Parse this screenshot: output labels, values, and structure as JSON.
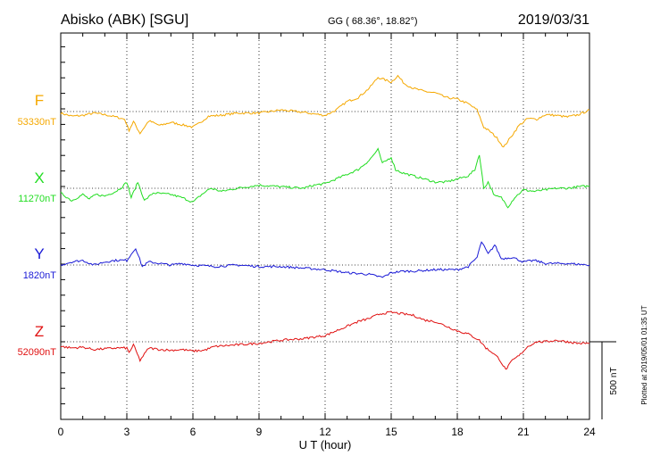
{
  "header": {
    "station": "Abisko (ABK)  [SGU]",
    "coords": "GG ( 68.36°,  18.82°)",
    "date": "2019/03/31"
  },
  "side_note": "Plotted at 2019/05/01 01:35 UT",
  "chart_data": {
    "type": "line",
    "title": "Abisko (ABK)  [SGU]",
    "xlabel": "U T (hour)",
    "ylabel": "",
    "xlim": [
      0,
      24
    ],
    "xticks": [
      0,
      3,
      6,
      9,
      12,
      15,
      18,
      21,
      24
    ],
    "grid": "dotted vertical lines every 3 hours",
    "scale_bar": {
      "label": "500 nT",
      "value_nT": 500
    },
    "series": [
      {
        "name": "F",
        "baseline_label": "53330nT",
        "color": "#f5a800",
        "baseline_offset_nT": -30,
        "x": [
          0,
          0.5,
          1,
          1.5,
          2,
          2.5,
          2.9,
          3.1,
          3.3,
          3.6,
          4,
          4.5,
          5,
          5.5,
          6,
          6.3,
          6.7,
          7.2,
          8,
          9,
          10,
          11,
          12,
          12.5,
          13,
          13.5,
          14,
          14.4,
          14.6,
          15,
          15.3,
          15.6,
          16,
          16.5,
          17,
          17.5,
          18,
          18.5,
          18.9,
          19.2,
          19.5,
          19.8,
          20.1,
          20.4,
          20.8,
          21.2,
          21.6,
          22,
          22.5,
          23,
          23.5,
          24
        ],
        "y": [
          20,
          0,
          5,
          20,
          10,
          -5,
          -20,
          -90,
          -35,
          -110,
          -30,
          -60,
          -40,
          -55,
          -70,
          -45,
          0,
          5,
          20,
          20,
          40,
          25,
          5,
          40,
          95,
          120,
          180,
          250,
          240,
          220,
          260,
          210,
          180,
          160,
          150,
          120,
          110,
          80,
          40,
          -70,
          -100,
          -140,
          -200,
          -140,
          -60,
          -15,
          -20,
          10,
          5,
          -5,
          10,
          40
        ]
      },
      {
        "name": "X",
        "baseline_label": "11270nT",
        "color": "#22dd22",
        "baseline_offset_nT": 0,
        "x": [
          0,
          0.5,
          1,
          1.3,
          1.6,
          2,
          2.5,
          2.8,
          3,
          3.2,
          3.5,
          3.8,
          4.2,
          5,
          5.5,
          6,
          6.4,
          6.8,
          7.3,
          8,
          9,
          10,
          11,
          11.5,
          12,
          12.5,
          13,
          13.5,
          14,
          14.4,
          14.6,
          15,
          15.2,
          15.5,
          16,
          16.5,
          17,
          17.5,
          18,
          18.5,
          18.8,
          19,
          19.2,
          19.4,
          19.7,
          20,
          20.3,
          20.6,
          21,
          21.5,
          22,
          22.5,
          23,
          23.5,
          24
        ],
        "y": [
          -30,
          -80,
          -40,
          -70,
          -40,
          -50,
          -20,
          10,
          40,
          -60,
          40,
          -80,
          -30,
          -40,
          -60,
          -90,
          -40,
          0,
          -20,
          0,
          20,
          10,
          0,
          20,
          30,
          60,
          90,
          120,
          180,
          250,
          160,
          200,
          120,
          100,
          80,
          60,
          40,
          40,
          60,
          80,
          120,
          220,
          0,
          40,
          -50,
          -60,
          -120,
          -60,
          -10,
          -20,
          -10,
          0,
          0,
          10,
          15
        ]
      },
      {
        "name": "Y",
        "baseline_label": "1820nT",
        "color": "#1a1ad6",
        "baseline_offset_nT": 10,
        "x": [
          0,
          0.5,
          1,
          1.5,
          2,
          2.5,
          3,
          3.2,
          3.4,
          3.7,
          4,
          4.5,
          5,
          5.5,
          6,
          7,
          8,
          9,
          10,
          11,
          12,
          13,
          14,
          14.6,
          15,
          15.5,
          16,
          17,
          18,
          18.5,
          18.9,
          19.1,
          19.4,
          19.7,
          20,
          20.5,
          21,
          21.5,
          22,
          23,
          24
        ],
        "y": [
          -10,
          10,
          20,
          -10,
          10,
          20,
          20,
          60,
          100,
          -20,
          10,
          0,
          -10,
          0,
          -10,
          -20,
          -10,
          -20,
          -20,
          -30,
          -40,
          -60,
          -70,
          -90,
          -60,
          -50,
          -50,
          -40,
          -40,
          -20,
          40,
          140,
          60,
          120,
          30,
          40,
          10,
          20,
          0,
          0,
          -10
        ]
      },
      {
        "name": "Z",
        "baseline_label": "52090nT",
        "color": "#e01010",
        "baseline_offset_nT": -10,
        "x": [
          0,
          0.5,
          1,
          1.5,
          2,
          2.5,
          3,
          3.1,
          3.3,
          3.6,
          4,
          4.5,
          5,
          5.5,
          6,
          6.5,
          7,
          8,
          9,
          10,
          11,
          12,
          12.5,
          13,
          13.5,
          14,
          14.5,
          15,
          15.5,
          16,
          16.5,
          17,
          17.5,
          18,
          18.5,
          19,
          19.3,
          19.6,
          19.9,
          20.2,
          20.5,
          20.8,
          21.2,
          21.6,
          22,
          22.5,
          23,
          23.5,
          24
        ],
        "y": [
          -20,
          -30,
          -25,
          -40,
          -35,
          -30,
          -30,
          -60,
          -10,
          -110,
          -30,
          -40,
          -45,
          -40,
          -50,
          -45,
          -20,
          -10,
          0,
          20,
          30,
          50,
          80,
          110,
          140,
          160,
          190,
          200,
          190,
          180,
          150,
          140,
          110,
          80,
          60,
          20,
          -30,
          -60,
          -100,
          -170,
          -110,
          -80,
          -20,
          10,
          10,
          20,
          10,
          0,
          0
        ]
      }
    ]
  }
}
